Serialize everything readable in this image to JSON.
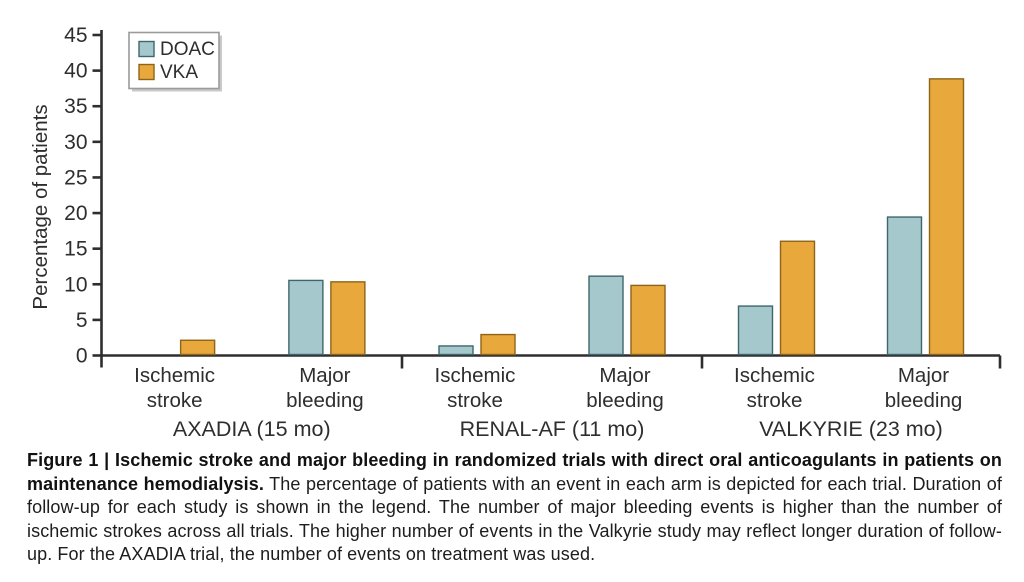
{
  "figure": {
    "caption_bold": "Figure 1 | Ischemic stroke and major bleeding in randomized trials with direct oral anticoagulants in patients on maintenance hemodialysis.",
    "caption_text": "The percentage of patients with an event in each arm is depicted for each trial. Duration of follow-up for each study is shown in the legend. The number of major bleeding events is higher than the number of ischemic strokes across all trials. The higher number of events in the Valkyrie study may reflect longer duration of follow-up. For the AXADIA trial, the number of events on treatment was used."
  },
  "chart_data": {
    "type": "bar",
    "title": "",
    "xlabel": "",
    "ylabel": "Percentage of patients",
    "ylim": [
      0,
      45
    ],
    "yticks": [
      0,
      5,
      10,
      15,
      20,
      25,
      30,
      35,
      40,
      45
    ],
    "grid": false,
    "legend_position": "top-left",
    "groups": [
      {
        "label": "AXADIA (15 mo)",
        "categories": [
          "Ischemic stroke",
          "Major bleeding"
        ]
      },
      {
        "label": "RENAL-AF (11 mo)",
        "categories": [
          "Ischemic stroke",
          "Major bleeding"
        ]
      },
      {
        "label": "VALKYRIE (23 mo)",
        "categories": [
          "Ischemic stroke",
          "Major bleeding"
        ]
      }
    ],
    "x_categories": [
      "AXADIA Ischemic stroke",
      "AXADIA Major bleeding",
      "RENAL-AF Ischemic stroke",
      "RENAL-AF Major bleeding",
      "VALKYRIE Ischemic stroke",
      "VALKYRIE Major bleeding"
    ],
    "series": [
      {
        "name": "DOAC",
        "fill": "#a5c8cc",
        "stroke": "#3f666c",
        "values": [
          0,
          10.4,
          1.2,
          11.0,
          6.8,
          19.3
        ]
      },
      {
        "name": "VKA",
        "fill": "#e8a83c",
        "stroke": "#8f6418",
        "values": [
          2.0,
          10.2,
          2.8,
          9.7,
          15.9,
          38.7
        ]
      }
    ],
    "colors": {
      "axis": "#2e2e2e",
      "text": "#2e2e2e",
      "legend_border": "#9b9b9b",
      "legend_shadow": "#c9c9c9"
    }
  }
}
